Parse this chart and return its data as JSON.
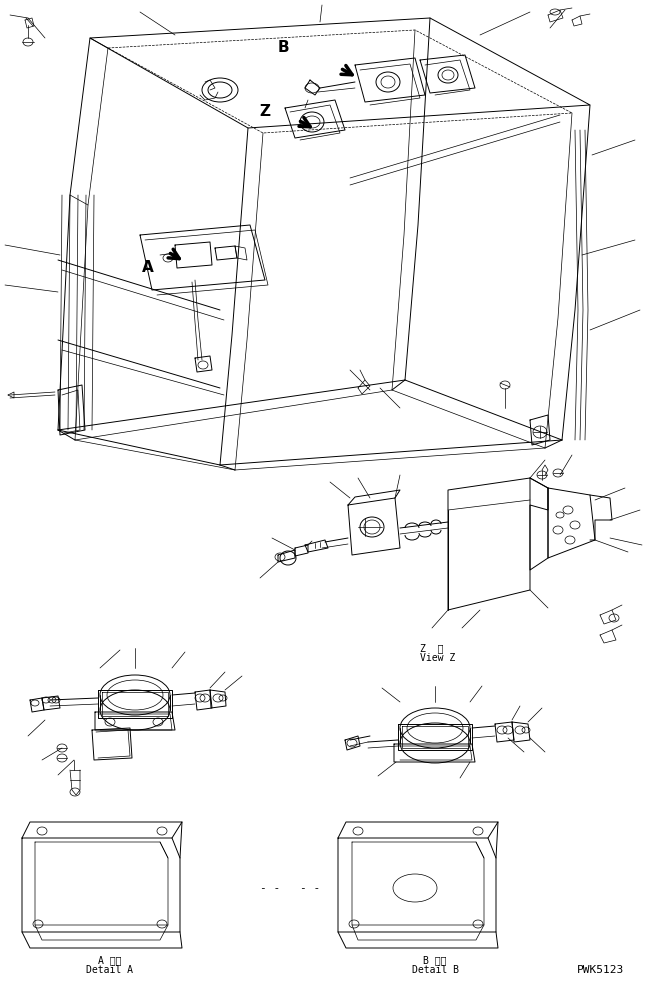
{
  "background_color": "#ffffff",
  "line_color": "#000000",
  "fig_width": 6.72,
  "fig_height": 9.94,
  "dpi": 100,
  "labels": {
    "A_detail_jp": "A 詳細",
    "A_detail_en": "Detail A",
    "B_detail_jp": "B 詳細",
    "B_detail_en": "Detail B",
    "Z_view_jp": "Z  視",
    "Z_view_en": "View Z",
    "part_number": "PWK5123",
    "label_A": "A",
    "label_B": "B",
    "label_Z": "Z"
  },
  "font_size_small": 7,
  "font_size_medium": 8
}
